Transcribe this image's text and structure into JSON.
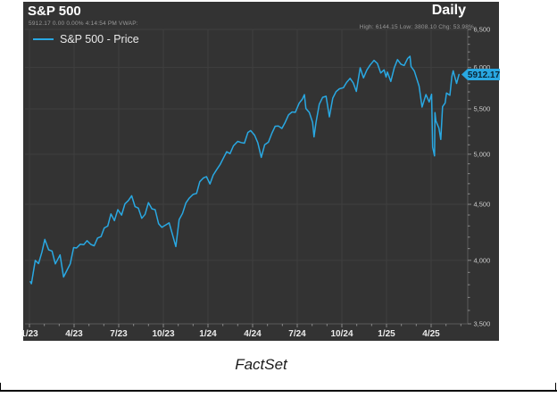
{
  "header": {
    "title": "S&P 500",
    "quote_line": "5912.17 0.00 0.00% 4:14:54 PM VWAP:",
    "period": "Daily",
    "stats_line": "High: 6144.15 Low: 3808.10 Chg: 53.98%"
  },
  "legend": {
    "label": "S&P 500 - Price"
  },
  "source": "FactSet",
  "colors": {
    "panel_bg": "#333333",
    "grid": "#3f3f3f",
    "axis": "#5a5a5a",
    "tick": "#8a8a8a",
    "series": "#29a8e2",
    "x_label": "#ececec",
    "y_label": "#cccccc",
    "tag_bg": "#29a8e2",
    "tag_text": "#0a2636",
    "title_text": "#ffffff",
    "sub_text": "#9a9a9a"
  },
  "chart_data": {
    "type": "line",
    "title": "S&P 500",
    "period": "Daily",
    "legend_entries": [
      "S&P 500 - Price"
    ],
    "legend_position": "top-left",
    "grid": true,
    "last_price": 5912.17,
    "last_price_label": "5912.17",
    "high": 6144.15,
    "low": 3808.1,
    "change_pct": 53.98,
    "y_axis": {
      "scale": "log",
      "position": "right",
      "min": 3500,
      "max": 6500,
      "minor_tick_step": 100,
      "ticks": [
        {
          "value": 3500,
          "label": "3,500"
        },
        {
          "value": 4000,
          "label": "4,000"
        },
        {
          "value": 4500,
          "label": "4,500"
        },
        {
          "value": 5000,
          "label": "5,000"
        },
        {
          "value": 5500,
          "label": "5,500"
        },
        {
          "value": 6000,
          "label": "6,000"
        },
        {
          "value": 6500,
          "label": "6,500"
        }
      ]
    },
    "x_axis": {
      "unit": "months-since-2023-01",
      "minor_tick_every_months": 1,
      "ticks": [
        {
          "t": 0,
          "label": "1/23"
        },
        {
          "t": 3,
          "label": "4/23"
        },
        {
          "t": 6,
          "label": "7/23"
        },
        {
          "t": 9,
          "label": "10/23"
        },
        {
          "t": 12,
          "label": "1/24"
        },
        {
          "t": 15,
          "label": "4/24"
        },
        {
          "t": 18,
          "label": "7/24"
        },
        {
          "t": 21,
          "label": "10/24"
        },
        {
          "t": 24,
          "label": "1/25"
        },
        {
          "t": 27,
          "label": "4/25"
        }
      ]
    },
    "series": [
      {
        "name": "S&P 500 - Price",
        "color": "#29a8e2",
        "points": [
          [
            0.06,
            3824
          ],
          [
            0.13,
            3808
          ],
          [
            0.39,
            3999
          ],
          [
            0.61,
            3973
          ],
          [
            0.84,
            4071
          ],
          [
            1.03,
            4180
          ],
          [
            1.29,
            4090
          ],
          [
            1.52,
            4079
          ],
          [
            1.74,
            3970
          ],
          [
            2.06,
            4046
          ],
          [
            2.29,
            3862
          ],
          [
            2.52,
            3917
          ],
          [
            2.74,
            3971
          ],
          [
            2.97,
            4109
          ],
          [
            3.16,
            4105
          ],
          [
            3.42,
            4138
          ],
          [
            3.65,
            4134
          ],
          [
            3.87,
            4169
          ],
          [
            4.13,
            4136
          ],
          [
            4.35,
            4124
          ],
          [
            4.58,
            4192
          ],
          [
            4.81,
            4205
          ],
          [
            5.03,
            4282
          ],
          [
            5.26,
            4299
          ],
          [
            5.48,
            4410
          ],
          [
            5.71,
            4348
          ],
          [
            5.94,
            4450
          ],
          [
            6.19,
            4399
          ],
          [
            6.42,
            4505
          ],
          [
            6.65,
            4536
          ],
          [
            6.87,
            4582
          ],
          [
            7.1,
            4478
          ],
          [
            7.32,
            4464
          ],
          [
            7.55,
            4370
          ],
          [
            7.77,
            4406
          ],
          [
            8.0,
            4516
          ],
          [
            8.23,
            4457
          ],
          [
            8.45,
            4450
          ],
          [
            8.68,
            4320
          ],
          [
            8.9,
            4288
          ],
          [
            9.16,
            4309
          ],
          [
            9.39,
            4328
          ],
          [
            9.61,
            4224
          ],
          [
            9.84,
            4117
          ],
          [
            10.06,
            4358
          ],
          [
            10.29,
            4415
          ],
          [
            10.52,
            4514
          ],
          [
            10.74,
            4559
          ],
          [
            11.0,
            4595
          ],
          [
            11.23,
            4604
          ],
          [
            11.45,
            4719
          ],
          [
            11.68,
            4755
          ],
          [
            11.9,
            4770
          ],
          [
            12.13,
            4697
          ],
          [
            12.35,
            4784
          ],
          [
            12.58,
            4840
          ],
          [
            12.81,
            4891
          ],
          [
            13.03,
            4959
          ],
          [
            13.26,
            5027
          ],
          [
            13.48,
            5006
          ],
          [
            13.71,
            5089
          ],
          [
            14.0,
            5137
          ],
          [
            14.23,
            5124
          ],
          [
            14.45,
            5117
          ],
          [
            14.68,
            5234
          ],
          [
            14.87,
            5254
          ],
          [
            15.13,
            5204
          ],
          [
            15.35,
            5123
          ],
          [
            15.58,
            4967
          ],
          [
            15.81,
            5100
          ],
          [
            16.06,
            5128
          ],
          [
            16.29,
            5223
          ],
          [
            16.52,
            5303
          ],
          [
            16.74,
            5305
          ],
          [
            16.97,
            5278
          ],
          [
            17.19,
            5347
          ],
          [
            17.42,
            5432
          ],
          [
            17.65,
            5465
          ],
          [
            17.87,
            5460
          ],
          [
            18.13,
            5567
          ],
          [
            18.35,
            5615
          ],
          [
            18.48,
            5667
          ],
          [
            18.58,
            5505
          ],
          [
            18.81,
            5459
          ],
          [
            19.03,
            5347
          ],
          [
            19.13,
            5186
          ],
          [
            19.26,
            5344
          ],
          [
            19.48,
            5554
          ],
          [
            19.71,
            5635
          ],
          [
            19.94,
            5648
          ],
          [
            20.16,
            5408
          ],
          [
            20.39,
            5626
          ],
          [
            20.61,
            5703
          ],
          [
            20.84,
            5738
          ],
          [
            21.1,
            5751
          ],
          [
            21.32,
            5815
          ],
          [
            21.55,
            5865
          ],
          [
            21.77,
            5808
          ],
          [
            21.97,
            5705
          ],
          [
            22.23,
            5996
          ],
          [
            22.45,
            5871
          ],
          [
            22.68,
            5969
          ],
          [
            22.9,
            6032
          ],
          [
            23.16,
            6090
          ],
          [
            23.39,
            6051
          ],
          [
            23.61,
            5931
          ],
          [
            23.84,
            5971
          ],
          [
            23.97,
            5882
          ],
          [
            24.06,
            5942
          ],
          [
            24.29,
            5827
          ],
          [
            24.52,
            5997
          ],
          [
            24.74,
            6101
          ],
          [
            24.97,
            6041
          ],
          [
            25.19,
            6026
          ],
          [
            25.42,
            6115
          ],
          [
            25.58,
            6144.15
          ],
          [
            25.65,
            6013
          ],
          [
            25.87,
            5955
          ],
          [
            26.19,
            5770
          ],
          [
            26.39,
            5521
          ],
          [
            26.65,
            5668
          ],
          [
            26.87,
            5581
          ],
          [
            27.03,
            5671
          ],
          [
            27.1,
            5074
          ],
          [
            27.23,
            4983
          ],
          [
            27.26,
            5457
          ],
          [
            27.32,
            5363
          ],
          [
            27.52,
            5283
          ],
          [
            27.65,
            5158
          ],
          [
            27.77,
            5525
          ],
          [
            27.94,
            5569
          ],
          [
            28.03,
            5687
          ],
          [
            28.26,
            5660
          ],
          [
            28.39,
            5886
          ],
          [
            28.48,
            5958
          ],
          [
            28.71,
            5803
          ],
          [
            28.87,
            5912.17
          ]
        ]
      }
    ]
  }
}
